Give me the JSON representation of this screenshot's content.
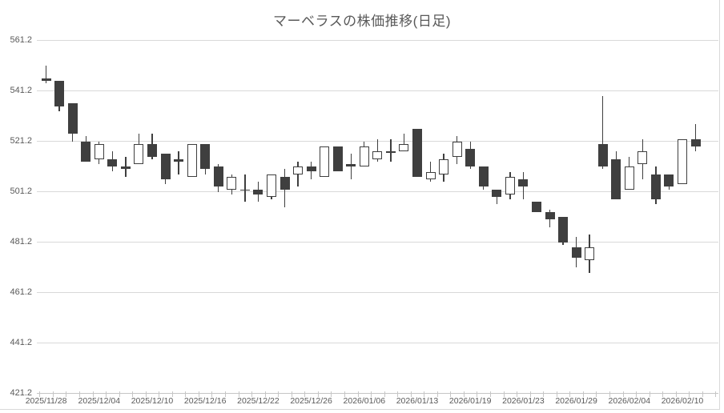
{
  "title": "マーベラスの株価推移(日足)",
  "colors": {
    "down_candle": "#3f3f3f",
    "up_candle_fill": "#ffffff",
    "candle_outline": "#3f3f3f",
    "gridline": "#d9d9d9",
    "axis_line": "#c6c6c6",
    "axis_text": "#595959",
    "title_text": "#595959",
    "background": "#ffffff"
  },
  "chart_data": {
    "type": "candlestick",
    "title": "マーベラスの株価推移(日足)",
    "legend": "none",
    "grid": "horizontal",
    "y_axis": {
      "min": 421.2,
      "max": 561.2,
      "tick_interval": 20,
      "tick_labels": [
        "561.2",
        "541.2",
        "521.2",
        "501.2",
        "481.2",
        "461.2",
        "441.2",
        "421.2"
      ]
    },
    "x_axis": {
      "label_every_n_candles": 4,
      "visible_labels": [
        "2025/11/28",
        "2025/12/04",
        "2025/12/10",
        "2025/12/16",
        "2025/12/22",
        "2025/12/26",
        "2026/01/06",
        "2026/01/13",
        "2026/01/19",
        "2026/01/23",
        "2026/01/29",
        "2026/02/04",
        "2026/02/10"
      ]
    },
    "series": [
      {
        "date": "2025/11/28",
        "open": 546,
        "high": 551,
        "low": 544,
        "close": 545
      },
      {
        "date": "2025/12/01",
        "open": 545,
        "high": 545,
        "low": 533,
        "close": 535
      },
      {
        "date": "2025/12/02",
        "open": 536,
        "high": 536,
        "low": 521,
        "close": 524
      },
      {
        "date": "2025/12/03",
        "open": 521,
        "high": 523,
        "low": 513,
        "close": 513
      },
      {
        "date": "2025/12/04",
        "open": 514,
        "high": 521,
        "low": 512,
        "close": 520
      },
      {
        "date": "2025/12/05",
        "open": 514,
        "high": 517,
        "low": 509,
        "close": 511
      },
      {
        "date": "2025/12/08",
        "open": 511,
        "high": 515,
        "low": 507,
        "close": 510
      },
      {
        "date": "2025/12/09",
        "open": 512,
        "high": 524,
        "low": 512,
        "close": 520
      },
      {
        "date": "2025/12/10",
        "open": 520,
        "high": 524,
        "low": 514,
        "close": 515
      },
      {
        "date": "2025/12/11",
        "open": 516,
        "high": 516,
        "low": 504,
        "close": 506
      },
      {
        "date": "2025/12/12",
        "open": 514,
        "high": 517,
        "low": 508,
        "close": 513
      },
      {
        "date": "2025/12/15",
        "open": 507,
        "high": 520,
        "low": 507,
        "close": 520
      },
      {
        "date": "2025/12/16",
        "open": 520,
        "high": 520,
        "low": 508,
        "close": 510
      },
      {
        "date": "2025/12/17",
        "open": 511,
        "high": 512,
        "low": 501,
        "close": 503
      },
      {
        "date": "2025/12/18",
        "open": 502,
        "high": 508,
        "low": 500,
        "close": 507
      },
      {
        "date": "2025/12/19",
        "open": 502,
        "high": 508,
        "low": 497,
        "close": 502
      },
      {
        "date": "2025/12/22",
        "open": 502,
        "high": 505,
        "low": 497,
        "close": 500
      },
      {
        "date": "2025/12/23",
        "open": 499,
        "high": 508,
        "low": 498,
        "close": 508
      },
      {
        "date": "2025/12/24",
        "open": 507,
        "high": 510,
        "low": 495,
        "close": 502
      },
      {
        "date": "2025/12/25",
        "open": 508,
        "high": 513,
        "low": 503,
        "close": 511
      },
      {
        "date": "2025/12/26",
        "open": 511,
        "high": 513,
        "low": 506,
        "close": 509
      },
      {
        "date": "2025/12/29",
        "open": 507,
        "high": 519,
        "low": 507,
        "close": 519
      },
      {
        "date": "2025/12/30",
        "open": 519,
        "high": 519,
        "low": 509,
        "close": 509
      },
      {
        "date": "2026/01/05",
        "open": 512,
        "high": 516,
        "low": 506,
        "close": 511
      },
      {
        "date": "2026/01/06",
        "open": 511,
        "high": 521,
        "low": 511,
        "close": 519
      },
      {
        "date": "2026/01/07",
        "open": 514,
        "high": 522,
        "low": 513,
        "close": 517
      },
      {
        "date": "2026/01/08",
        "open": 517,
        "high": 522,
        "low": 513,
        "close": 517
      },
      {
        "date": "2026/01/09",
        "open": 517,
        "high": 524,
        "low": 517,
        "close": 520
      },
      {
        "date": "2026/01/13",
        "open": 526,
        "high": 526,
        "low": 507,
        "close": 507
      },
      {
        "date": "2026/01/14",
        "open": 506,
        "high": 513,
        "low": 505,
        "close": 509
      },
      {
        "date": "2026/01/15",
        "open": 508,
        "high": 516,
        "low": 505,
        "close": 514
      },
      {
        "date": "2026/01/16",
        "open": 515,
        "high": 523,
        "low": 512,
        "close": 521
      },
      {
        "date": "2026/01/19",
        "open": 518,
        "high": 521,
        "low": 510,
        "close": 511
      },
      {
        "date": "2026/01/20",
        "open": 511,
        "high": 511,
        "low": 502,
        "close": 503
      },
      {
        "date": "2026/01/21",
        "open": 502,
        "high": 502,
        "low": 496,
        "close": 499
      },
      {
        "date": "2026/01/22",
        "open": 500,
        "high": 509,
        "low": 498,
        "close": 507
      },
      {
        "date": "2026/01/23",
        "open": 506,
        "high": 509,
        "low": 498,
        "close": 503
      },
      {
        "date": "2026/01/26",
        "open": 497,
        "high": 497,
        "low": 493,
        "close": 493
      },
      {
        "date": "2026/01/27",
        "open": 493,
        "high": 494,
        "low": 487,
        "close": 490
      },
      {
        "date": "2026/01/28",
        "open": 491,
        "high": 491,
        "low": 480,
        "close": 481
      },
      {
        "date": "2026/01/29",
        "open": 479,
        "high": 483,
        "low": 471,
        "close": 475
      },
      {
        "date": "2026/01/30",
        "open": 474,
        "high": 484,
        "low": 469,
        "close": 479
      },
      {
        "date": "2026/02/02",
        "open": 520,
        "high": 539,
        "low": 510,
        "close": 511
      },
      {
        "date": "2026/02/03",
        "open": 514,
        "high": 517,
        "low": 498,
        "close": 498
      },
      {
        "date": "2026/02/04",
        "open": 502,
        "high": 515,
        "low": 502,
        "close": 511
      },
      {
        "date": "2026/02/05",
        "open": 512,
        "high": 522,
        "low": 506,
        "close": 517
      },
      {
        "date": "2026/02/06",
        "open": 508,
        "high": 511,
        "low": 496,
        "close": 498
      },
      {
        "date": "2026/02/09",
        "open": 508,
        "high": 508,
        "low": 502,
        "close": 503
      },
      {
        "date": "2026/02/10",
        "open": 504,
        "high": 522,
        "low": 504,
        "close": 522
      },
      {
        "date": "2026/02/12",
        "open": 522,
        "high": 528,
        "low": 517,
        "close": 519
      }
    ]
  }
}
